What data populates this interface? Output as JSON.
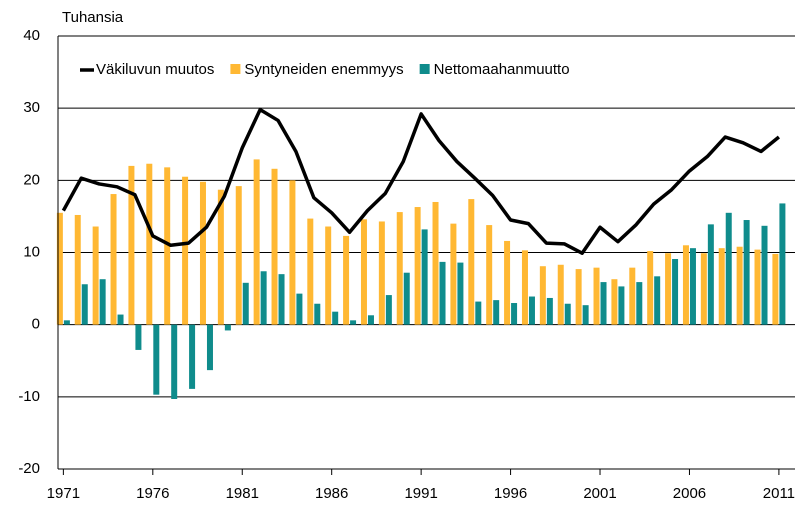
{
  "chart_data": {
    "type": "combo",
    "y_label": "Tuhansia",
    "x": [
      1971,
      1972,
      1973,
      1974,
      1975,
      1976,
      1977,
      1978,
      1979,
      1980,
      1981,
      1982,
      1983,
      1984,
      1985,
      1986,
      1987,
      1988,
      1989,
      1990,
      1991,
      1992,
      1993,
      1994,
      1995,
      1996,
      1997,
      1998,
      1999,
      2000,
      2001,
      2002,
      2003,
      2004,
      2005,
      2006,
      2007,
      2008,
      2009,
      2010,
      2011
    ],
    "xlim": [
      1970.7,
      2011.9
    ],
    "xticks": [
      1971,
      1976,
      1981,
      1986,
      1991,
      1996,
      2001,
      2006,
      2011
    ],
    "ylim": [
      -20,
      40
    ],
    "yticks": [
      -20,
      -10,
      0,
      10,
      20,
      30,
      40
    ],
    "grid": true,
    "legend": "top-left",
    "series": [
      {
        "name": "Väkiluvun muutos",
        "type": "line",
        "color": "#000000",
        "values": [
          15.8,
          20.3,
          19.5,
          19.1,
          18.0,
          12.3,
          11.0,
          11.3,
          13.5,
          17.8,
          24.5,
          29.8,
          28.3,
          24.0,
          17.6,
          15.5,
          12.8,
          15.8,
          18.2,
          22.6,
          29.2,
          25.5,
          22.6,
          20.3,
          17.9,
          14.5,
          14.0,
          11.3,
          11.2,
          9.9,
          13.5,
          11.5,
          13.8,
          16.7,
          18.7,
          21.3,
          23.3,
          26.0,
          25.2,
          24.0,
          26.0
        ]
      },
      {
        "name": "Syntyneiden enemmyys",
        "type": "bar",
        "color": "#ffb833",
        "values": [
          15.5,
          15.2,
          13.6,
          18.1,
          22.0,
          22.3,
          21.8,
          20.5,
          19.8,
          18.7,
          19.2,
          22.9,
          21.6,
          20.0,
          14.7,
          13.6,
          12.3,
          14.6,
          14.3,
          15.6,
          16.3,
          17.0,
          14.0,
          17.4,
          13.8,
          11.6,
          10.3,
          8.1,
          8.3,
          7.7,
          7.9,
          6.3,
          7.9,
          10.2,
          9.9,
          11.0,
          9.9,
          10.6,
          10.8,
          10.4,
          9.8
        ]
      },
      {
        "name": "Nettomaahanmuutto",
        "type": "bar",
        "color": "#0f8c8c",
        "values": [
          0.6,
          5.6,
          6.3,
          1.4,
          -3.5,
          -9.7,
          -10.3,
          -8.9,
          -6.3,
          -0.8,
          5.8,
          7.4,
          7.0,
          4.3,
          2.9,
          1.8,
          0.6,
          1.3,
          4.1,
          7.2,
          13.2,
          8.7,
          8.6,
          3.2,
          3.4,
          3.0,
          3.9,
          3.7,
          2.9,
          2.7,
          5.9,
          5.3,
          5.9,
          6.7,
          9.1,
          10.6,
          13.9,
          15.5,
          14.5,
          13.7,
          16.8
        ]
      }
    ]
  }
}
